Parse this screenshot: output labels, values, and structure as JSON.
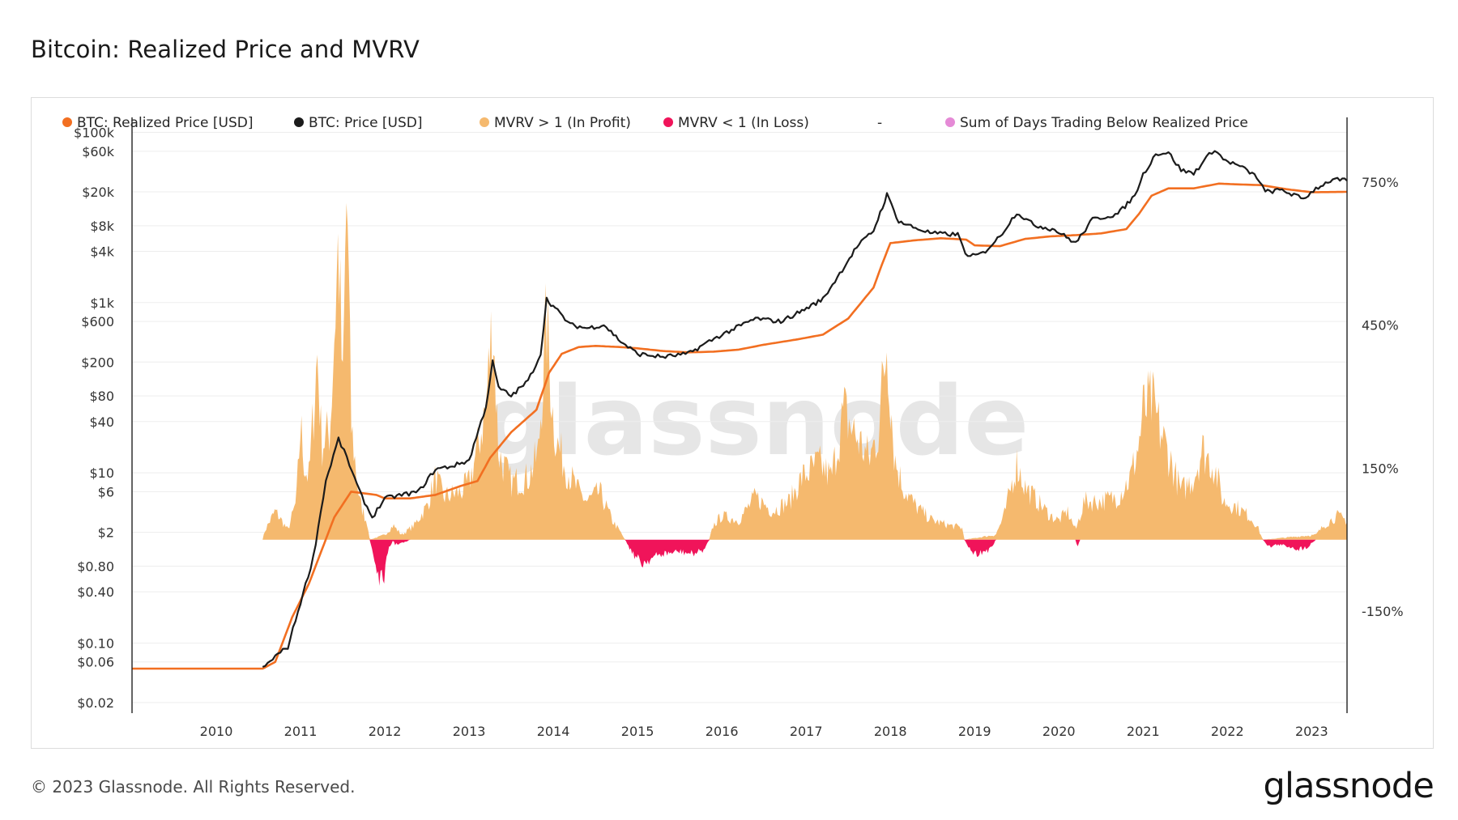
{
  "page": {
    "title": "Bitcoin: Realized Price and MVRV",
    "copyright": "© 2023 Glassnode. All Rights Reserved.",
    "brand": "glassnode",
    "watermark": "glassnode"
  },
  "colors": {
    "realized_price": "#f26f21",
    "price": "#1b1b1b",
    "mvrv_profit": "#f5b96e",
    "mvrv_loss": "#f0145a",
    "sum_days": "#e58ad6",
    "grid": "#ededed",
    "watermark": "#e6e6e6"
  },
  "legend": [
    {
      "label": "BTC: Realized Price [USD]",
      "color": "#f26f21",
      "muted": false
    },
    {
      "label": "BTC: Price [USD]",
      "color": "#1b1b1b",
      "muted": false
    },
    {
      "label": "MVRV > 1 (In Profit)",
      "color": "#f5b96e",
      "muted": false
    },
    {
      "label": "MVRV < 1 (In Loss)",
      "color": "#f0145a",
      "muted": false
    },
    {
      "label": "-",
      "color": null,
      "muted": false
    },
    {
      "label": "Sum of Days Trading Below Realized Price",
      "color": "#e58ad6",
      "muted": true
    }
  ],
  "chart_data": {
    "type": "line",
    "x_axis": {
      "min": 2009.0,
      "max": 2023.42,
      "ticks": [
        "2010",
        "2011",
        "2012",
        "2013",
        "2014",
        "2015",
        "2016",
        "2017",
        "2018",
        "2019",
        "2020",
        "2021",
        "2022",
        "2023"
      ]
    },
    "y_left": {
      "scale": "log",
      "min": 0.015,
      "max": 150000,
      "ticks": [
        {
          "label": "$100k",
          "value": 100000
        },
        {
          "label": "$60k",
          "value": 60000
        },
        {
          "label": "$20k",
          "value": 20000
        },
        {
          "label": "$8k",
          "value": 8000
        },
        {
          "label": "$4k",
          "value": 4000
        },
        {
          "label": "$1k",
          "value": 1000
        },
        {
          "label": "$600",
          "value": 600
        },
        {
          "label": "$200",
          "value": 200
        },
        {
          "label": "$80",
          "value": 80
        },
        {
          "label": "$40",
          "value": 40
        },
        {
          "label": "$10",
          "value": 10
        },
        {
          "label": "$6",
          "value": 6
        },
        {
          "label": "$2",
          "value": 2
        },
        {
          "label": "$0.80",
          "value": 0.8
        },
        {
          "label": "$0.40",
          "value": 0.4
        },
        {
          "label": "$0.10",
          "value": 0.1
        },
        {
          "label": "$0.06",
          "value": 0.06
        },
        {
          "label": "$0.02",
          "value": 0.02
        }
      ]
    },
    "y_right": {
      "scale": "linear",
      "min": -150,
      "max": 750,
      "ticks": [
        {
          "label": "750%",
          "value": 750
        },
        {
          "label": "450%",
          "value": 450
        },
        {
          "label": "150%",
          "value": 150
        },
        {
          "label": "-150%",
          "value": -150
        }
      ]
    },
    "series": [
      {
        "name": "BTC: Realized Price [USD]",
        "axis": "left",
        "points": [
          [
            2009.0,
            0.05
          ],
          [
            2010.55,
            0.05
          ],
          [
            2010.7,
            0.06
          ],
          [
            2010.9,
            0.2
          ],
          [
            2011.1,
            0.5
          ],
          [
            2011.4,
            3
          ],
          [
            2011.6,
            6
          ],
          [
            2011.9,
            5.5
          ],
          [
            2012.0,
            5
          ],
          [
            2012.3,
            5
          ],
          [
            2012.6,
            5.5
          ],
          [
            2012.9,
            7
          ],
          [
            2013.1,
            8
          ],
          [
            2013.25,
            15
          ],
          [
            2013.5,
            30
          ],
          [
            2013.8,
            55
          ],
          [
            2013.95,
            150
          ],
          [
            2014.1,
            250
          ],
          [
            2014.3,
            300
          ],
          [
            2014.5,
            310
          ],
          [
            2014.8,
            300
          ],
          [
            2015.0,
            290
          ],
          [
            2015.3,
            270
          ],
          [
            2015.6,
            260
          ],
          [
            2015.9,
            265
          ],
          [
            2016.2,
            280
          ],
          [
            2016.5,
            320
          ],
          [
            2016.9,
            370
          ],
          [
            2017.2,
            420
          ],
          [
            2017.5,
            650
          ],
          [
            2017.8,
            1500
          ],
          [
            2017.9,
            2800
          ],
          [
            2018.0,
            5000
          ],
          [
            2018.3,
            5400
          ],
          [
            2018.6,
            5700
          ],
          [
            2018.9,
            5500
          ],
          [
            2019.0,
            4700
          ],
          [
            2019.3,
            4600
          ],
          [
            2019.6,
            5600
          ],
          [
            2019.9,
            6000
          ],
          [
            2020.2,
            6200
          ],
          [
            2020.5,
            6500
          ],
          [
            2020.8,
            7300
          ],
          [
            2020.95,
            11000
          ],
          [
            2021.1,
            18000
          ],
          [
            2021.3,
            22000
          ],
          [
            2021.6,
            22000
          ],
          [
            2021.9,
            25000
          ],
          [
            2022.1,
            24500
          ],
          [
            2022.4,
            24000
          ],
          [
            2022.7,
            21500
          ],
          [
            2023.0,
            19800
          ],
          [
            2023.42,
            20000
          ]
        ]
      },
      {
        "name": "BTC: Price [USD]",
        "axis": "left",
        "points": [
          [
            2010.55,
            0.05
          ],
          [
            2010.7,
            0.07
          ],
          [
            2010.85,
            0.09
          ],
          [
            2011.0,
            0.3
          ],
          [
            2011.15,
            1
          ],
          [
            2011.3,
            8
          ],
          [
            2011.45,
            25
          ],
          [
            2011.55,
            15
          ],
          [
            2011.7,
            6
          ],
          [
            2011.85,
            3
          ],
          [
            2012.0,
            5
          ],
          [
            2012.2,
            5.5
          ],
          [
            2012.4,
            6
          ],
          [
            2012.6,
            11
          ],
          [
            2012.8,
            12
          ],
          [
            2013.0,
            14
          ],
          [
            2013.2,
            60
          ],
          [
            2013.28,
            200
          ],
          [
            2013.35,
            100
          ],
          [
            2013.5,
            80
          ],
          [
            2013.7,
            120
          ],
          [
            2013.85,
            250
          ],
          [
            2013.92,
            1100
          ],
          [
            2014.05,
            800
          ],
          [
            2014.2,
            550
          ],
          [
            2014.4,
            500
          ],
          [
            2014.6,
            550
          ],
          [
            2014.8,
            350
          ],
          [
            2015.0,
            250
          ],
          [
            2015.3,
            230
          ],
          [
            2015.6,
            250
          ],
          [
            2015.85,
            350
          ],
          [
            2016.0,
            420
          ],
          [
            2016.4,
            650
          ],
          [
            2016.7,
            600
          ],
          [
            2016.95,
            800
          ],
          [
            2017.2,
            1100
          ],
          [
            2017.4,
            2200
          ],
          [
            2017.6,
            4500
          ],
          [
            2017.8,
            7000
          ],
          [
            2017.96,
            18500
          ],
          [
            2018.1,
            9000
          ],
          [
            2018.3,
            7500
          ],
          [
            2018.5,
            6500
          ],
          [
            2018.8,
            6300
          ],
          [
            2018.92,
            3400
          ],
          [
            2019.1,
            3800
          ],
          [
            2019.3,
            6000
          ],
          [
            2019.5,
            11500
          ],
          [
            2019.7,
            8200
          ],
          [
            2019.95,
            7200
          ],
          [
            2020.2,
            5000
          ],
          [
            2020.4,
            9500
          ],
          [
            2020.7,
            11000
          ],
          [
            2020.9,
            18000
          ],
          [
            2021.0,
            32000
          ],
          [
            2021.15,
            56000
          ],
          [
            2021.3,
            58000
          ],
          [
            2021.45,
            36000
          ],
          [
            2021.6,
            33000
          ],
          [
            2021.75,
            50000
          ],
          [
            2021.85,
            64000
          ],
          [
            2021.95,
            48000
          ],
          [
            2022.15,
            40000
          ],
          [
            2022.35,
            30000
          ],
          [
            2022.45,
            20000
          ],
          [
            2022.65,
            21000
          ],
          [
            2022.9,
            16500
          ],
          [
            2023.05,
            22000
          ],
          [
            2023.25,
            28000
          ],
          [
            2023.42,
            27000
          ]
        ]
      },
      {
        "name": "MVRV > 1 (In Profit)",
        "axis": "right",
        "sign": "positive",
        "points": [
          [
            2010.55,
            0
          ],
          [
            2010.58,
            20
          ],
          [
            2010.7,
            60
          ],
          [
            2010.85,
            20
          ],
          [
            2010.95,
            80
          ],
          [
            2011.0,
            240
          ],
          [
            2011.05,
            150
          ],
          [
            2011.1,
            130
          ],
          [
            2011.2,
            390
          ],
          [
            2011.25,
            200
          ],
          [
            2011.35,
            230
          ],
          [
            2011.45,
            630
          ],
          [
            2011.5,
            300
          ],
          [
            2011.55,
            750
          ],
          [
            2011.6,
            240
          ],
          [
            2011.7,
            80
          ],
          [
            2011.8,
            30
          ],
          [
            2011.82,
            0
          ],
          [
            2012.0,
            10
          ],
          [
            2012.1,
            30
          ],
          [
            2012.2,
            10
          ],
          [
            2012.35,
            30
          ],
          [
            2012.5,
            70
          ],
          [
            2012.6,
            130
          ],
          [
            2012.7,
            90
          ],
          [
            2012.9,
            100
          ],
          [
            2013.0,
            120
          ],
          [
            2013.1,
            190
          ],
          [
            2013.2,
            280
          ],
          [
            2013.28,
            470
          ],
          [
            2013.35,
            180
          ],
          [
            2013.5,
            120
          ],
          [
            2013.7,
            130
          ],
          [
            2013.82,
            180
          ],
          [
            2013.92,
            460
          ],
          [
            2014.0,
            250
          ],
          [
            2014.05,
            200
          ],
          [
            2014.15,
            150
          ],
          [
            2014.3,
            100
          ],
          [
            2014.4,
            80
          ],
          [
            2014.55,
            100
          ],
          [
            2014.7,
            40
          ],
          [
            2014.8,
            15
          ],
          [
            2014.85,
            0
          ],
          [
            2015.85,
            0
          ],
          [
            2015.9,
            30
          ],
          [
            2016.0,
            50
          ],
          [
            2016.2,
            40
          ],
          [
            2016.4,
            90
          ],
          [
            2016.6,
            60
          ],
          [
            2016.8,
            80
          ],
          [
            2016.95,
            130
          ],
          [
            2017.15,
            160
          ],
          [
            2017.3,
            130
          ],
          [
            2017.45,
            270
          ],
          [
            2017.55,
            230
          ],
          [
            2017.65,
            200
          ],
          [
            2017.75,
            170
          ],
          [
            2017.85,
            220
          ],
          [
            2017.96,
            420
          ],
          [
            2018.05,
            170
          ],
          [
            2018.15,
            110
          ],
          [
            2018.3,
            70
          ],
          [
            2018.5,
            40
          ],
          [
            2018.7,
            30
          ],
          [
            2018.85,
            25
          ],
          [
            2018.88,
            0
          ],
          [
            2019.25,
            10
          ],
          [
            2019.35,
            50
          ],
          [
            2019.5,
            160
          ],
          [
            2019.6,
            110
          ],
          [
            2019.75,
            80
          ],
          [
            2019.9,
            50
          ],
          [
            2020.0,
            40
          ],
          [
            2020.1,
            60
          ],
          [
            2020.2,
            20
          ],
          [
            2020.3,
            80
          ],
          [
            2020.5,
            80
          ],
          [
            2020.7,
            90
          ],
          [
            2020.85,
            130
          ],
          [
            2020.95,
            200
          ],
          [
            2021.0,
            270
          ],
          [
            2021.1,
            290
          ],
          [
            2021.2,
            230
          ],
          [
            2021.3,
            180
          ],
          [
            2021.45,
            100
          ],
          [
            2021.6,
            130
          ],
          [
            2021.7,
            190
          ],
          [
            2021.85,
            150
          ],
          [
            2021.95,
            80
          ],
          [
            2022.1,
            70
          ],
          [
            2022.25,
            50
          ],
          [
            2022.35,
            30
          ],
          [
            2022.42,
            0
          ],
          [
            2023.05,
            10
          ],
          [
            2023.15,
            30
          ],
          [
            2023.3,
            50
          ],
          [
            2023.42,
            40
          ]
        ]
      },
      {
        "name": "MVRV < 1 (In Loss)",
        "axis": "right",
        "sign": "negative",
        "points": [
          [
            2011.82,
            0
          ],
          [
            2011.85,
            -20
          ],
          [
            2011.9,
            -60
          ],
          [
            2011.95,
            -90
          ],
          [
            2012.0,
            -70
          ],
          [
            2012.05,
            -20
          ],
          [
            2012.1,
            0
          ],
          [
            2012.12,
            -10
          ],
          [
            2012.25,
            -5
          ],
          [
            2012.3,
            0
          ],
          [
            2014.85,
            0
          ],
          [
            2014.95,
            -30
          ],
          [
            2015.05,
            -50
          ],
          [
            2015.15,
            -40
          ],
          [
            2015.3,
            -30
          ],
          [
            2015.5,
            -25
          ],
          [
            2015.65,
            -30
          ],
          [
            2015.8,
            -20
          ],
          [
            2015.85,
            0
          ],
          [
            2018.88,
            0
          ],
          [
            2018.95,
            -20
          ],
          [
            2019.0,
            -30
          ],
          [
            2019.1,
            -25
          ],
          [
            2019.2,
            -20
          ],
          [
            2019.25,
            0
          ],
          [
            2020.2,
            0
          ],
          [
            2020.22,
            -15
          ],
          [
            2020.25,
            0
          ],
          [
            2022.42,
            0
          ],
          [
            2022.5,
            -15
          ],
          [
            2022.6,
            -10
          ],
          [
            2022.75,
            -15
          ],
          [
            2022.85,
            -20
          ],
          [
            2022.95,
            -15
          ],
          [
            2023.05,
            0
          ]
        ]
      }
    ]
  }
}
